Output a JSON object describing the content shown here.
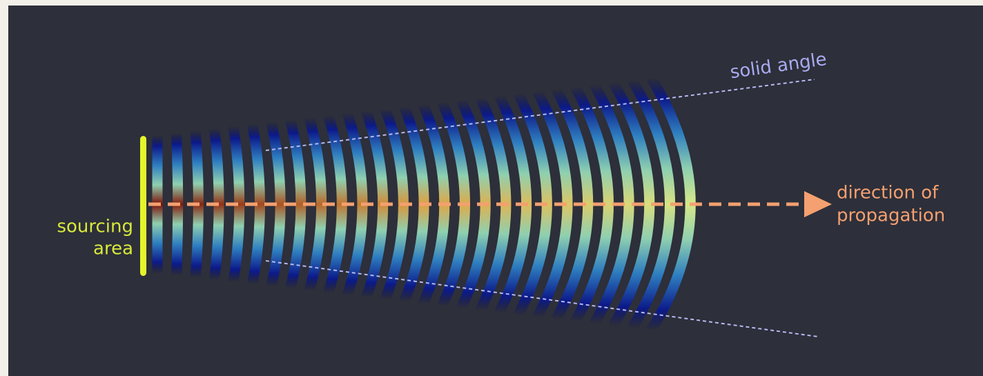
{
  "labels": {
    "solid_angle": "solid angle",
    "direction": [
      "direction of",
      "propagation"
    ],
    "source": [
      "sourcing",
      "area"
    ]
  }
}
